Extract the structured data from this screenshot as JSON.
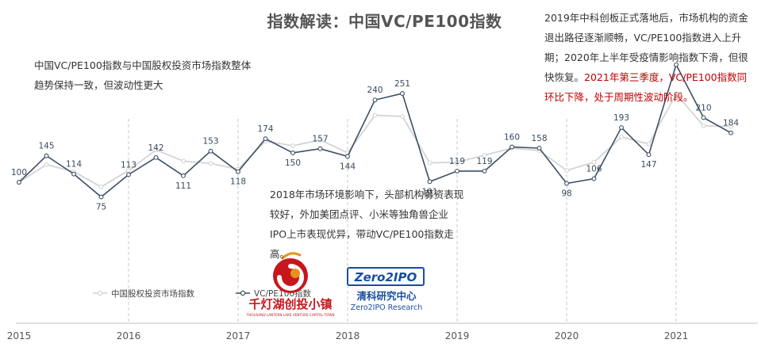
{
  "title": "指数解读：中国VC/PE100指数",
  "notes": {
    "left": "中国VC/PE100指数与中国股权投资市场指数整体趋势保持一致，但波动性更大",
    "middle": "2018年市场环境影响下，头部机构募资表现较好，外加美团点评、小米等独角兽企业IPO上市表现优异，带动VC/PE100指数走高。",
    "right_black": "2019年中科创板正式落地后，市场机构的资金退出路径逐渐顺畅，VC/PE100指数进入上升期；2020年上半年受疫情影响指数下滑，但很快恢复。",
    "right_red": "2021年第三季度，VC/PE100指数同环比下降，处于周期性波动阶段。"
  },
  "logos": {
    "qiandenghu_cn": "千灯湖创投小镇",
    "qiandenghu_en": "THOUSAND LANTERN LAKE VENTURE CAPITAL TOWN",
    "zero2ipo_badge": "Zero2IPO",
    "zero2ipo_cn": "清科研究中心",
    "zero2ipo_en": "Zero2IPO Research"
  },
  "colors": {
    "vcpe": "#3d4f66",
    "market": "#d4d4d4",
    "grid": "#c8c8c8",
    "note_red": "#c00000",
    "logo_red": "#c8161d",
    "logo_orange": "#e8911b",
    "zero2ipo_blue": "#1a4e9e"
  },
  "chart_data": {
    "type": "line",
    "x": [
      "2015Q1",
      "2015Q2",
      "2015Q3",
      "2015Q4",
      "2016Q1",
      "2016Q2",
      "2016Q3",
      "2016Q4",
      "2017Q1",
      "2017Q2",
      "2017Q3",
      "2017Q4",
      "2018Q1",
      "2018Q2",
      "2018Q3",
      "2018Q4",
      "2019Q1",
      "2019Q2",
      "2019Q3",
      "2019Q4",
      "2020Q1",
      "2020Q2",
      "2020Q3",
      "2020Q4",
      "2021Q1",
      "2021Q2",
      "2021Q3"
    ],
    "year_ticks": [
      "2015",
      "2016",
      "2017",
      "2018",
      "2019",
      "2020",
      "2021"
    ],
    "series": [
      {
        "name": "VC/PE100指数",
        "values": [
          100,
          145,
          114,
          75,
          113,
          142,
          111,
          153,
          118,
          174,
          150,
          157,
          144,
          240,
          251,
          101,
          119,
          119,
          160,
          158,
          98,
          106,
          193,
          147,
          300,
          210,
          184
        ],
        "labels": [
          "100",
          "145",
          "114",
          "75",
          "113",
          "142",
          "111",
          "153",
          "118",
          "174",
          "150",
          "157",
          "144",
          "240",
          "251",
          "101",
          "119",
          "119",
          "160",
          "158",
          "98",
          "106",
          "193",
          "147",
          "",
          "210",
          "184"
        ]
      },
      {
        "name": "中国股权投资市场指数",
        "values": [
          100,
          130,
          118,
          92,
          120,
          155,
          136,
          132,
          122,
          170,
          162,
          172,
          150,
          214,
          212,
          133,
          134,
          146,
          158,
          154,
          120,
          134,
          177,
          165,
          250,
          196,
          195
        ]
      }
    ],
    "ylim": [
      50,
      320
    ],
    "grid": "vertical-dashed-at-year",
    "legend": "bottom-left"
  }
}
